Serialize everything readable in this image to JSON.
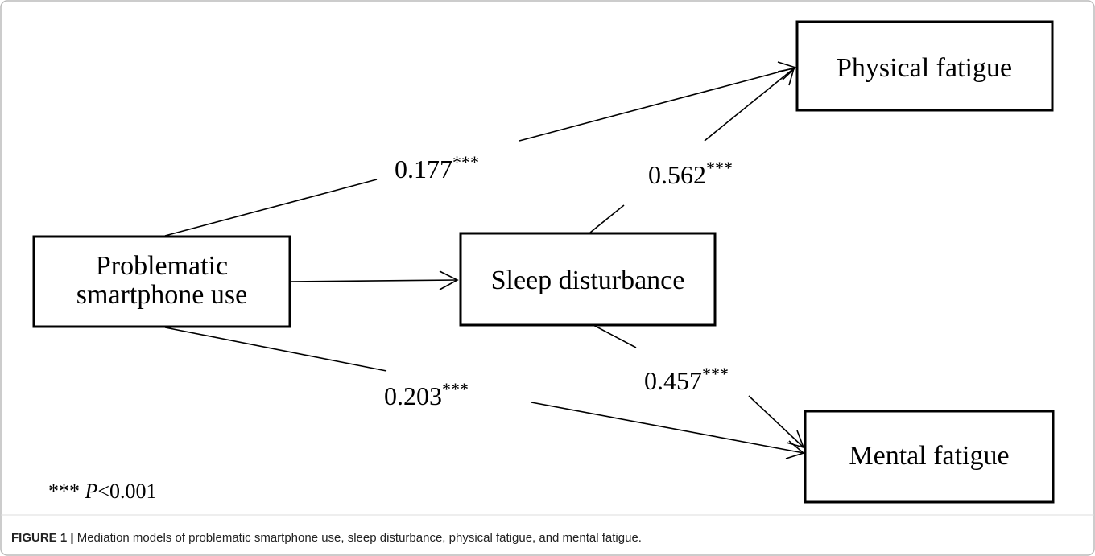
{
  "nodes": [
    {
      "lines": [
        "Problematic",
        "smartphone use"
      ]
    },
    {
      "label": "Sleep disturbance"
    },
    {
      "label": "Physical fatigue"
    },
    {
      "label": "Mental fatigue"
    }
  ],
  "edges": [
    {
      "value": "0.177",
      "sig": "***"
    },
    {
      "value": "0.562",
      "sig": "***"
    },
    {
      "value": "0.203",
      "sig": "***"
    },
    {
      "value": "0.457",
      "sig": "***"
    }
  ],
  "note": {
    "stars": "***",
    "p": "P",
    "rest": "<0.001"
  },
  "caption": {
    "label": "FIGURE 1 |",
    "text": "Mediation models of problematic smartphone use, sleep disturbance, physical fatigue, and mental fatigue."
  }
}
